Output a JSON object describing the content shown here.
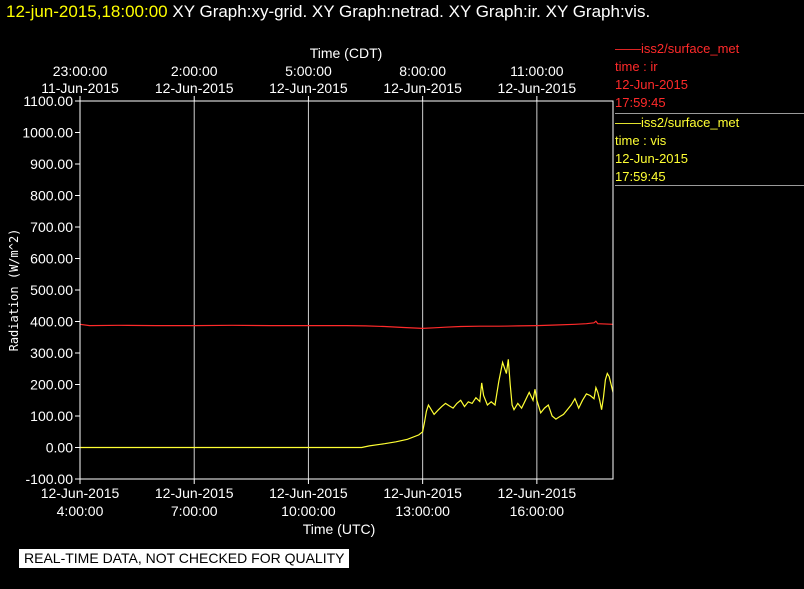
{
  "title": {
    "timestamp": "12-jun-2015,18:00:00",
    "graphs": "XY Graph:xy-grid.  XY Graph:netrad.  XY Graph:ir.  XY Graph:vis."
  },
  "legend": [
    {
      "series": "——iss2/surface_met",
      "var": "time : ir",
      "date": "12-Jun-2015",
      "time": "17:59:45",
      "color": "#ff2a2a"
    },
    {
      "series": "——iss2/surface_met",
      "var": "time : vis",
      "date": "12-Jun-2015",
      "time": "17:59:45",
      "color": "#ffff33"
    }
  ],
  "notice": "REAL-TIME DATA, NOT CHECKED FOR QUALITY",
  "chart_data": {
    "type": "line",
    "ylabel": "Radiation (W/m^2)",
    "xlabel_bottom": "Time (UTC)",
    "xlabel_top": "Time (CDT)",
    "ylim": [
      -100,
      1100
    ],
    "xlim_hours_utc": [
      4.0,
      18.0
    ],
    "yticks": [
      "1100.00",
      "1000.00",
      "900.00",
      "800.00",
      "700.00",
      "600.00",
      "500.00",
      "400.00",
      "300.00",
      "200.00",
      "100.00",
      "0.00",
      "-100.00"
    ],
    "xticks_bottom": [
      {
        "date": "12-Jun-2015",
        "time": "4:00:00"
      },
      {
        "date": "12-Jun-2015",
        "time": "7:00:00"
      },
      {
        "date": "12-Jun-2015",
        "time": "10:00:00"
      },
      {
        "date": "12-Jun-2015",
        "time": "13:00:00"
      },
      {
        "date": "12-Jun-2015",
        "time": "16:00:00"
      }
    ],
    "xticks_top": [
      {
        "time": "23:00:00",
        "date": "11-Jun-2015"
      },
      {
        "time": "2:00:00",
        "date": "12-Jun-2015"
      },
      {
        "time": "5:00:00",
        "date": "12-Jun-2015"
      },
      {
        "time": "8:00:00",
        "date": "12-Jun-2015"
      },
      {
        "time": "11:00:00",
        "date": "12-Jun-2015"
      }
    ],
    "grid": "vertical",
    "series": [
      {
        "color": "#ff2a2a",
        "points": [
          [
            4.0,
            391
          ],
          [
            4.25,
            387
          ],
          [
            5.0,
            388
          ],
          [
            6.0,
            387
          ],
          [
            7.0,
            387
          ],
          [
            8.0,
            388
          ],
          [
            9.0,
            387
          ],
          [
            10.0,
            387
          ],
          [
            11.0,
            387
          ],
          [
            11.5,
            386
          ],
          [
            12.0,
            384
          ],
          [
            12.5,
            381
          ],
          [
            13.0,
            378
          ],
          [
            13.3,
            380
          ],
          [
            13.6,
            382
          ],
          [
            14.0,
            384
          ],
          [
            14.5,
            385
          ],
          [
            15.0,
            385
          ],
          [
            15.5,
            386
          ],
          [
            16.0,
            387
          ],
          [
            16.5,
            389
          ],
          [
            17.0,
            391
          ],
          [
            17.3,
            393
          ],
          [
            17.5,
            396
          ],
          [
            17.55,
            401
          ],
          [
            17.6,
            393
          ],
          [
            18.0,
            391
          ]
        ]
      },
      {
        "color": "#ffff33",
        "points": [
          [
            4.0,
            0
          ],
          [
            6.0,
            0
          ],
          [
            8.0,
            0
          ],
          [
            10.0,
            0
          ],
          [
            11.0,
            0
          ],
          [
            11.4,
            0
          ],
          [
            11.6,
            5
          ],
          [
            12.0,
            12
          ],
          [
            12.3,
            18
          ],
          [
            12.6,
            26
          ],
          [
            12.9,
            40
          ],
          [
            13.0,
            50
          ],
          [
            13.05,
            80
          ],
          [
            13.1,
            115
          ],
          [
            13.15,
            135
          ],
          [
            13.2,
            125
          ],
          [
            13.3,
            105
          ],
          [
            13.4,
            118
          ],
          [
            13.5,
            130
          ],
          [
            13.6,
            140
          ],
          [
            13.7,
            132
          ],
          [
            13.8,
            125
          ],
          [
            13.9,
            140
          ],
          [
            14.0,
            150
          ],
          [
            14.1,
            130
          ],
          [
            14.2,
            145
          ],
          [
            14.3,
            140
          ],
          [
            14.4,
            158
          ],
          [
            14.5,
            146
          ],
          [
            14.55,
            205
          ],
          [
            14.6,
            165
          ],
          [
            14.7,
            135
          ],
          [
            14.8,
            145
          ],
          [
            14.9,
            135
          ],
          [
            15.0,
            210
          ],
          [
            15.05,
            240
          ],
          [
            15.1,
            270
          ],
          [
            15.2,
            235
          ],
          [
            15.25,
            280
          ],
          [
            15.3,
            200
          ],
          [
            15.35,
            135
          ],
          [
            15.4,
            120
          ],
          [
            15.5,
            140
          ],
          [
            15.6,
            125
          ],
          [
            15.7,
            150
          ],
          [
            15.8,
            175
          ],
          [
            15.9,
            150
          ],
          [
            15.95,
            185
          ],
          [
            16.0,
            150
          ],
          [
            16.05,
            130
          ],
          [
            16.1,
            110
          ],
          [
            16.2,
            125
          ],
          [
            16.3,
            135
          ],
          [
            16.4,
            100
          ],
          [
            16.5,
            90
          ],
          [
            16.6,
            98
          ],
          [
            16.7,
            105
          ],
          [
            16.8,
            120
          ],
          [
            16.9,
            135
          ],
          [
            17.0,
            155
          ],
          [
            17.05,
            140
          ],
          [
            17.1,
            125
          ],
          [
            17.2,
            150
          ],
          [
            17.3,
            170
          ],
          [
            17.4,
            165
          ],
          [
            17.5,
            155
          ],
          [
            17.55,
            190
          ],
          [
            17.6,
            175
          ],
          [
            17.65,
            150
          ],
          [
            17.7,
            120
          ],
          [
            17.75,
            160
          ],
          [
            17.8,
            215
          ],
          [
            17.85,
            235
          ],
          [
            17.9,
            225
          ],
          [
            18.0,
            175
          ]
        ]
      }
    ]
  }
}
